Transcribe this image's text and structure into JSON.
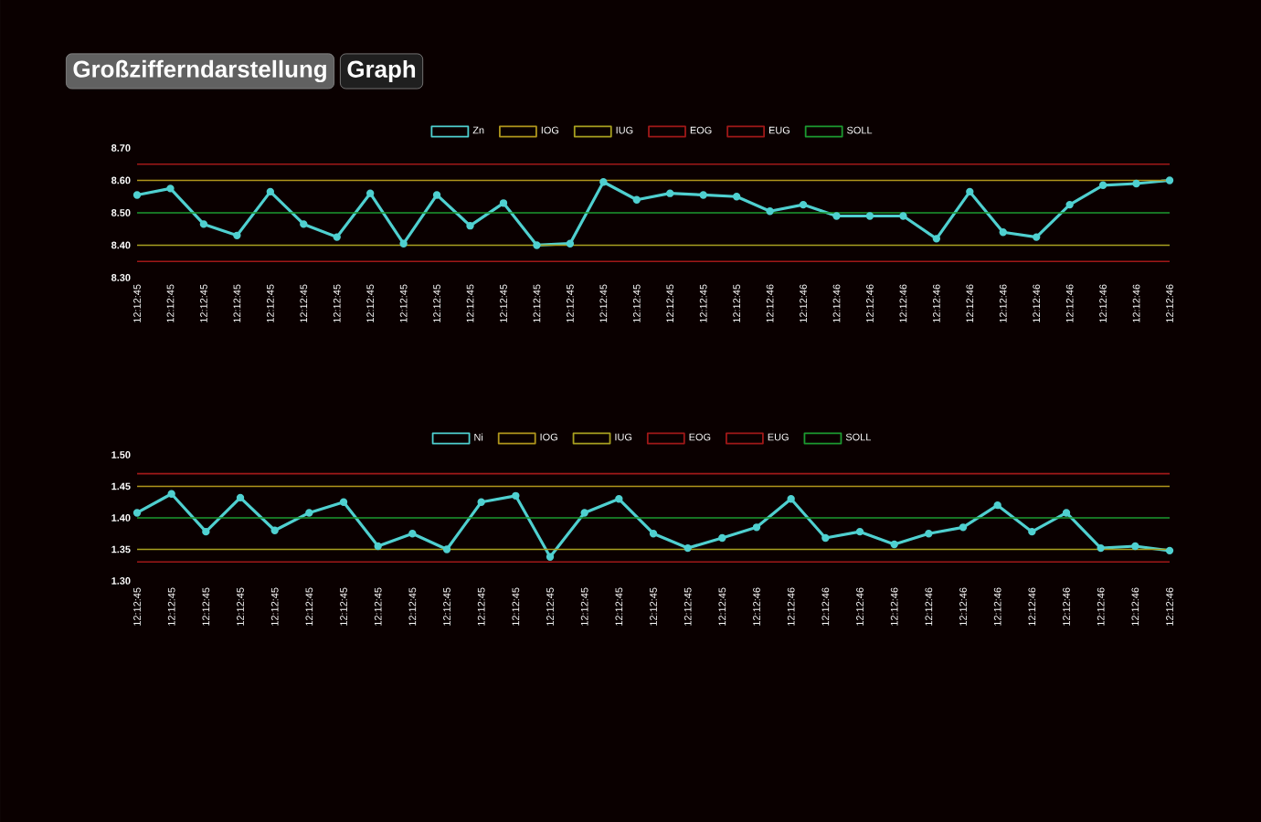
{
  "chart_data": [
    {
      "type": "line",
      "annotations": [
        "Großzifferndarstellung",
        "Graph"
      ],
      "legend": "top",
      "marker": "circle",
      "categories": [
        "12:12:45",
        "12:12:45",
        "12:12:45",
        "12:12:45",
        "12:12:45",
        "12:12:45",
        "12:12:45",
        "12:12:45",
        "12:12:45",
        "12:12:45",
        "12:12:45",
        "12:12:45",
        "12:12:45",
        "12:12:45",
        "12:12:45",
        "12:12:45",
        "12:12:45",
        "12:12:45",
        "12:12:45",
        "12:12:46",
        "12:12:46",
        "12:12:46",
        "12:12:46",
        "12:12:46",
        "12:12:46",
        "12:12:46",
        "12:12:46",
        "12:12:46",
        "12:12:46",
        "12:12:46",
        "12:12:46",
        "12:12:46"
      ],
      "ylim": [
        8.3,
        8.7
      ],
      "yticks": [
        {
          "value": 8.3,
          "label": "8.30"
        },
        {
          "value": 8.4,
          "label": "8.40"
        },
        {
          "value": 8.5,
          "label": "8.50"
        },
        {
          "value": 8.6,
          "label": "8.60"
        },
        {
          "value": 8.7,
          "label": "8.70"
        }
      ],
      "series": [
        {
          "name": "Zn",
          "color": "#4fd0d0",
          "values": [
            8.555,
            8.575,
            8.465,
            8.43,
            8.565,
            8.465,
            8.425,
            8.56,
            8.405,
            8.555,
            8.46,
            8.53,
            8.4,
            8.405,
            8.595,
            8.54,
            8.56,
            8.555,
            8.55,
            8.505,
            8.525,
            8.49,
            8.49,
            8.49,
            8.42,
            8.565,
            8.44,
            8.425,
            8.525,
            8.585,
            8.59,
            8.6
          ]
        },
        {
          "name": "IOG",
          "color": "#b0961c",
          "marker": "none",
          "values": [
            8.6,
            8.6,
            8.6,
            8.6,
            8.6,
            8.6,
            8.6,
            8.6,
            8.6,
            8.6,
            8.6,
            8.6,
            8.6,
            8.6,
            8.6,
            8.6,
            8.6,
            8.6,
            8.6,
            8.6,
            8.6,
            8.6,
            8.6,
            8.6,
            8.6,
            8.6,
            8.6,
            8.6,
            8.6,
            8.6,
            8.6,
            8.6
          ]
        },
        {
          "name": "IUG",
          "color": "#a8a020",
          "marker": "none",
          "values": [
            8.4,
            8.4,
            8.4,
            8.4,
            8.4,
            8.4,
            8.4,
            8.4,
            8.4,
            8.4,
            8.4,
            8.4,
            8.4,
            8.4,
            8.4,
            8.4,
            8.4,
            8.4,
            8.4,
            8.4,
            8.4,
            8.4,
            8.4,
            8.4,
            8.4,
            8.4,
            8.4,
            8.4,
            8.4,
            8.4,
            8.4,
            8.4
          ]
        },
        {
          "name": "EOG",
          "color": "#a01818",
          "marker": "none",
          "values": [
            8.65,
            8.65,
            8.65,
            8.65,
            8.65,
            8.65,
            8.65,
            8.65,
            8.65,
            8.65,
            8.65,
            8.65,
            8.65,
            8.65,
            8.65,
            8.65,
            8.65,
            8.65,
            8.65,
            8.65,
            8.65,
            8.65,
            8.65,
            8.65,
            8.65,
            8.65,
            8.65,
            8.65,
            8.65,
            8.65,
            8.65,
            8.65
          ]
        },
        {
          "name": "EUG",
          "color": "#a01818",
          "marker": "none",
          "values": [
            8.35,
            8.35,
            8.35,
            8.35,
            8.35,
            8.35,
            8.35,
            8.35,
            8.35,
            8.35,
            8.35,
            8.35,
            8.35,
            8.35,
            8.35,
            8.35,
            8.35,
            8.35,
            8.35,
            8.35,
            8.35,
            8.35,
            8.35,
            8.35,
            8.35,
            8.35,
            8.35,
            8.35,
            8.35,
            8.35,
            8.35,
            8.35
          ]
        },
        {
          "name": "SOLL",
          "color": "#1c9a30",
          "marker": "none",
          "values": [
            8.5,
            8.5,
            8.5,
            8.5,
            8.5,
            8.5,
            8.5,
            8.5,
            8.5,
            8.5,
            8.5,
            8.5,
            8.5,
            8.5,
            8.5,
            8.5,
            8.5,
            8.5,
            8.5,
            8.5,
            8.5,
            8.5,
            8.5,
            8.5,
            8.5,
            8.5,
            8.5,
            8.5,
            8.5,
            8.5,
            8.5,
            8.5
          ]
        }
      ]
    },
    {
      "type": "line",
      "legend": "top",
      "marker": "circle",
      "categories": [
        "12:12:45",
        "12:12:45",
        "12:12:45",
        "12:12:45",
        "12:12:45",
        "12:12:45",
        "12:12:45",
        "12:12:45",
        "12:12:45",
        "12:12:45",
        "12:12:45",
        "12:12:45",
        "12:12:45",
        "12:12:45",
        "12:12:45",
        "12:12:45",
        "12:12:45",
        "12:12:45",
        "12:12:46",
        "12:12:46",
        "12:12:46",
        "12:12:46",
        "12:12:46",
        "12:12:46",
        "12:12:46",
        "12:12:46",
        "12:12:46",
        "12:12:46",
        "12:12:46",
        "12:12:46",
        "12:12:46"
      ],
      "ylim": [
        1.3,
        1.5
      ],
      "yticks": [
        {
          "value": 1.3,
          "label": "1.30"
        },
        {
          "value": 1.35,
          "label": "1.35"
        },
        {
          "value": 1.4,
          "label": "1.40"
        },
        {
          "value": 1.45,
          "label": "1.45"
        },
        {
          "value": 1.5,
          "label": "1.50"
        }
      ],
      "series": [
        {
          "name": "Ni",
          "color": "#4fd0d0",
          "values": [
            1.408,
            1.438,
            1.378,
            1.432,
            1.38,
            1.408,
            1.425,
            1.355,
            1.375,
            1.35,
            1.425,
            1.435,
            1.338,
            1.408,
            1.43,
            1.375,
            1.352,
            1.368,
            1.385,
            1.43,
            1.368,
            1.378,
            1.358,
            1.375,
            1.385,
            1.42,
            1.378,
            1.408,
            1.352,
            1.355,
            1.348
          ]
        },
        {
          "name": "IOG",
          "color": "#b0961c",
          "marker": "none",
          "values": [
            1.45,
            1.45,
            1.45,
            1.45,
            1.45,
            1.45,
            1.45,
            1.45,
            1.45,
            1.45,
            1.45,
            1.45,
            1.45,
            1.45,
            1.45,
            1.45,
            1.45,
            1.45,
            1.45,
            1.45,
            1.45,
            1.45,
            1.45,
            1.45,
            1.45,
            1.45,
            1.45,
            1.45,
            1.45,
            1.45,
            1.45
          ]
        },
        {
          "name": "IUG",
          "color": "#a8a020",
          "marker": "none",
          "values": [
            1.35,
            1.35,
            1.35,
            1.35,
            1.35,
            1.35,
            1.35,
            1.35,
            1.35,
            1.35,
            1.35,
            1.35,
            1.35,
            1.35,
            1.35,
            1.35,
            1.35,
            1.35,
            1.35,
            1.35,
            1.35,
            1.35,
            1.35,
            1.35,
            1.35,
            1.35,
            1.35,
            1.35,
            1.35,
            1.35,
            1.35
          ]
        },
        {
          "name": "EOG",
          "color": "#a01818",
          "marker": "none",
          "values": [
            1.47,
            1.47,
            1.47,
            1.47,
            1.47,
            1.47,
            1.47,
            1.47,
            1.47,
            1.47,
            1.47,
            1.47,
            1.47,
            1.47,
            1.47,
            1.47,
            1.47,
            1.47,
            1.47,
            1.47,
            1.47,
            1.47,
            1.47,
            1.47,
            1.47,
            1.47,
            1.47,
            1.47,
            1.47,
            1.47,
            1.47
          ]
        },
        {
          "name": "EUG",
          "color": "#a01818",
          "marker": "none",
          "values": [
            1.33,
            1.33,
            1.33,
            1.33,
            1.33,
            1.33,
            1.33,
            1.33,
            1.33,
            1.33,
            1.33,
            1.33,
            1.33,
            1.33,
            1.33,
            1.33,
            1.33,
            1.33,
            1.33,
            1.33,
            1.33,
            1.33,
            1.33,
            1.33,
            1.33,
            1.33,
            1.33,
            1.33,
            1.33,
            1.33,
            1.33
          ]
        },
        {
          "name": "SOLL",
          "color": "#1c9a30",
          "marker": "none",
          "values": [
            1.4,
            1.4,
            1.4,
            1.4,
            1.4,
            1.4,
            1.4,
            1.4,
            1.4,
            1.4,
            1.4,
            1.4,
            1.4,
            1.4,
            1.4,
            1.4,
            1.4,
            1.4,
            1.4,
            1.4,
            1.4,
            1.4,
            1.4,
            1.4,
            1.4,
            1.4,
            1.4,
            1.4,
            1.4,
            1.4,
            1.4
          ]
        }
      ]
    }
  ]
}
